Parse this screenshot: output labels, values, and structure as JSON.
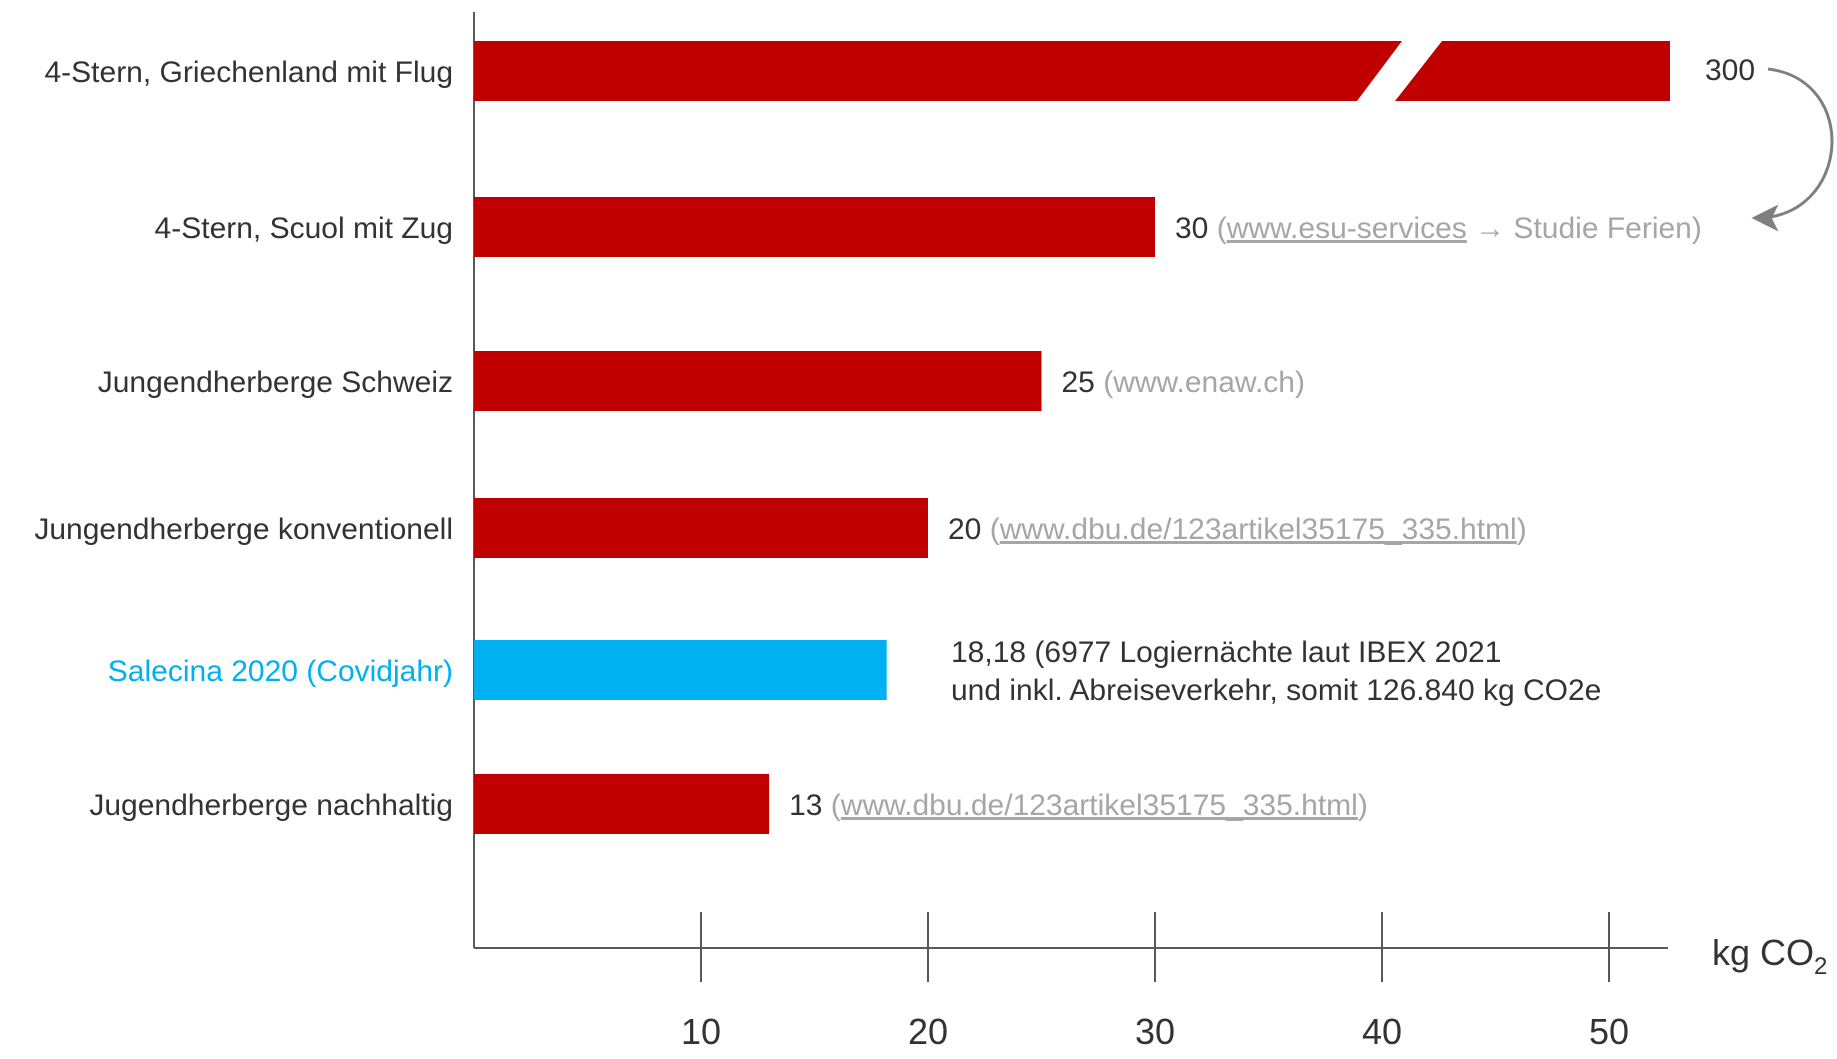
{
  "chart_data": {
    "type": "bar",
    "orientation": "horizontal",
    "categories": [
      "4-Stern, Griechenland mit Flug",
      "4-Stern, Scuol mit Zug",
      "Jungendherberge Schweiz",
      "Jungendherberge konventionell",
      "Salecina 2020 (Covidjahr)",
      "Jugendherberge nachhaltig"
    ],
    "values": [
      300,
      30,
      25,
      20,
      18.18,
      13
    ],
    "value_labels": [
      "300",
      "30",
      "25",
      "20",
      "18,18",
      "13"
    ],
    "annotations": [
      [],
      [
        {
          "text": " (",
          "style": "gray"
        },
        {
          "text": "www.esu-services",
          "style": "gray-underline"
        },
        {
          "text": " → Studie Ferien)",
          "style": "gray"
        }
      ],
      [
        {
          "text": " (www.enaw.ch)",
          "style": "gray"
        }
      ],
      [
        {
          "text": " (",
          "style": "gray"
        },
        {
          "text": "www.dbu.de/123artikel35175_335.html",
          "style": "gray-underline"
        },
        {
          "text": ")",
          "style": "gray"
        }
      ],
      [
        {
          "text": " (6977 Logiernächte laut IBEX 2021",
          "style": "dark"
        },
        {
          "text": "und inkl. Abreiseverkehr, somit 126.840 kg CO2e",
          "style": "dark",
          "newline": true
        }
      ],
      [
        {
          "text": " (",
          "style": "gray"
        },
        {
          "text": "www.dbu.de/123artikel35175_335.html",
          "style": "gray-underline"
        },
        {
          "text": ")",
          "style": "gray"
        }
      ]
    ],
    "bar_colors": [
      "#C00000",
      "#C00000",
      "#C00000",
      "#C00000",
      "#00B0F0",
      "#C00000"
    ],
    "label_colors": [
      "#333333",
      "#333333",
      "#333333",
      "#333333",
      "#00B0F0",
      "#333333"
    ],
    "broken_bar_index": 0,
    "xticks": [
      10,
      20,
      30,
      40,
      50
    ],
    "xlim": [
      0,
      52.5
    ],
    "xlabel": "kg CO",
    "xlabel_subscript": "2",
    "grid": false,
    "colors": {
      "text_dark": "#333333",
      "text_gray": "#A6A6A6",
      "axis": "#595959",
      "arrow": "#7F7F7F"
    }
  }
}
